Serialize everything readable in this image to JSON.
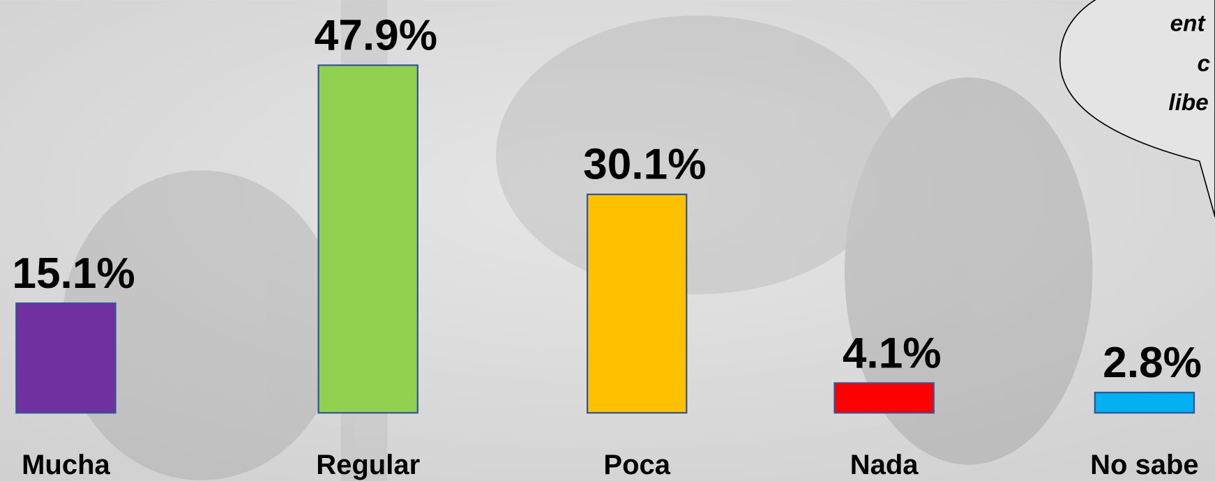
{
  "chart_data": {
    "type": "bar",
    "categories": [
      "Mucha",
      "Regular",
      "Poca",
      "Nada",
      "No sabe"
    ],
    "values": [
      15.1,
      47.9,
      30.1,
      4.1,
      2.8
    ],
    "value_labels": [
      "15.1%",
      "47.9%",
      "30.1%",
      "4.1%",
      "2.8%"
    ],
    "colors": [
      "#7030a0",
      "#92d050",
      "#ffc000",
      "#ff0000",
      "#00b0f0"
    ],
    "annotation": [
      "ent",
      "c",
      "libe"
    ]
  }
}
